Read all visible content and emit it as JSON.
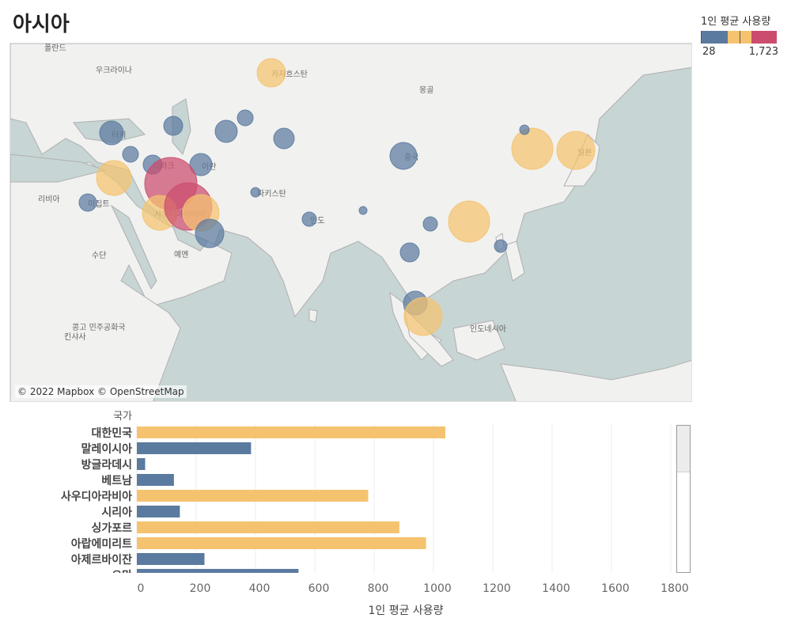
{
  "title": "아시아",
  "legend": {
    "title": "1인 평균 사용량",
    "min_label": "28",
    "max_label": "1,723",
    "colors": [
      "#5b7a9f",
      "#f5c36f",
      "#cc4c6e"
    ]
  },
  "map": {
    "attribution": "© 2022 Mapbox © OpenStreetMap",
    "colors": {
      "water": "#c7d5d4",
      "land": "#f1f1f0",
      "border": "#9a9a9a"
    },
    "place_labels": [
      "폴란드",
      "우크라이나",
      "카자흐스탄",
      "몽골",
      "터키",
      "이라크",
      "이란",
      "중국",
      "일본",
      "리비아",
      "이집트",
      "사우디아라비아",
      "파키스탄",
      "인도",
      "수단",
      "예멘",
      "콩고 민주공화국",
      "킨샤사",
      "인도네시아"
    ]
  },
  "chart_data": {
    "type": "bar",
    "orientation": "horizontal",
    "row_header": "국가",
    "categories": [
      "대한민국",
      "말레이시아",
      "방글라데시",
      "베트남",
      "사우디아라비아",
      "시리아",
      "싱가포르",
      "아랍에미리트",
      "아제르바이잔",
      "오만"
    ],
    "values": [
      1040,
      385,
      28,
      125,
      780,
      145,
      885,
      975,
      228,
      545
    ],
    "colors": [
      "#f5c36f",
      "#5b7a9f",
      "#5b7a9f",
      "#5b7a9f",
      "#f5c36f",
      "#5b7a9f",
      "#f5c36f",
      "#f5c36f",
      "#5b7a9f",
      "#5b7a9f"
    ],
    "xlabel": "1인 평균 사용량",
    "xticks": [
      "0",
      "200",
      "400",
      "600",
      "800",
      "1000",
      "1200",
      "1400",
      "1600",
      "1800"
    ],
    "xlim": [
      0,
      1850
    ],
    "grid": true
  }
}
